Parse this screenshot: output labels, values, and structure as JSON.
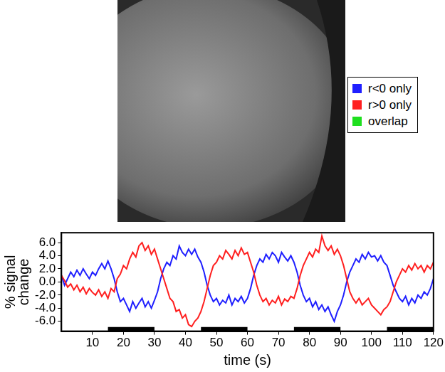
{
  "chart_data": {
    "type": "line",
    "x_label": "time (s)",
    "y_label": "% signal change",
    "x": [
      0,
      1,
      2,
      3,
      4,
      5,
      6,
      7,
      8,
      9,
      10,
      11,
      12,
      13,
      14,
      15,
      16,
      17,
      18,
      19,
      20,
      21,
      22,
      23,
      24,
      25,
      26,
      27,
      28,
      29,
      30,
      31,
      32,
      33,
      34,
      35,
      36,
      37,
      38,
      39,
      40,
      41,
      42,
      43,
      44,
      45,
      46,
      47,
      48,
      49,
      50,
      51,
      52,
      53,
      54,
      55,
      56,
      57,
      58,
      59,
      60,
      61,
      62,
      63,
      64,
      65,
      66,
      67,
      68,
      69,
      70,
      71,
      72,
      73,
      74,
      75,
      76,
      77,
      78,
      79,
      80,
      81,
      82,
      83,
      84,
      85,
      86,
      87,
      88,
      89,
      90,
      91,
      92,
      93,
      94,
      95,
      96,
      97,
      98,
      99,
      100,
      101,
      102,
      103,
      104,
      105,
      106,
      107,
      108,
      109,
      110,
      111,
      112,
      113,
      114,
      115,
      116,
      117,
      118,
      119,
      120
    ],
    "series": [
      {
        "color": "#ff1f1f",
        "values": [
          1.0,
          0.2,
          -0.8,
          -0.3,
          -1.2,
          -0.5,
          -1.5,
          -0.8,
          -1.8,
          -1.0,
          -1.6,
          -2.0,
          -1.2,
          -2.2,
          -1.5,
          -2.5,
          -1.0,
          -1.5,
          0.5,
          1.2,
          2.5,
          2.0,
          3.5,
          4.5,
          3.8,
          5.5,
          6.0,
          4.8,
          5.5,
          4.2,
          5.0,
          3.5,
          2.0,
          0.5,
          -1.0,
          -2.5,
          -3.0,
          -4.5,
          -4.2,
          -5.5,
          -5.0,
          -6.5,
          -6.8,
          -6.0,
          -5.5,
          -4.5,
          -3.0,
          -1.0,
          1.0,
          2.5,
          3.0,
          4.0,
          3.5,
          4.8,
          4.2,
          3.5,
          4.8,
          4.0,
          5.2,
          4.2,
          4.5,
          3.0,
          1.5,
          -0.5,
          -2.0,
          -3.0,
          -2.5,
          -3.5,
          -2.8,
          -3.2,
          -2.2,
          -3.5,
          -2.6,
          -3.0,
          -2.2,
          -2.5,
          -1.0,
          1.0,
          2.5,
          3.5,
          4.5,
          3.8,
          5.0,
          4.5,
          7.0,
          5.5,
          4.8,
          5.5,
          4.2,
          5.0,
          4.0,
          2.5,
          0.5,
          -1.5,
          -2.5,
          -3.2,
          -2.5,
          -3.5,
          -3.0,
          -2.5,
          -3.5,
          -4.0,
          -4.5,
          -5.0,
          -4.2,
          -3.8,
          -3.0,
          -1.5,
          0.0,
          1.0,
          2.0,
          1.5,
          2.5,
          1.8,
          2.8,
          2.0,
          2.5,
          1.5,
          2.5,
          2.0,
          3.0
        ]
      },
      {
        "color": "#1f1fff",
        "values": [
          1.0,
          -0.5,
          0.5,
          1.5,
          0.8,
          1.8,
          1.0,
          2.0,
          1.2,
          0.5,
          1.5,
          1.0,
          2.0,
          2.8,
          2.0,
          3.2,
          2.0,
          0.5,
          -1.5,
          -3.0,
          -2.5,
          -3.5,
          -4.5,
          -3.0,
          -4.0,
          -3.2,
          -2.5,
          -3.8,
          -3.0,
          -4.0,
          -2.8,
          -1.5,
          0.5,
          2.0,
          3.0,
          2.5,
          4.0,
          3.5,
          5.5,
          4.5,
          4.0,
          5.0,
          4.2,
          5.0,
          3.8,
          3.0,
          1.5,
          -0.5,
          -2.0,
          -3.0,
          -2.5,
          -3.5,
          -2.8,
          -3.2,
          -2.0,
          -3.5,
          -2.5,
          -3.0,
          -2.2,
          -3.2,
          -2.5,
          -1.0,
          1.0,
          2.5,
          3.5,
          3.0,
          4.2,
          3.5,
          4.5,
          4.0,
          3.0,
          4.5,
          3.8,
          3.2,
          4.0,
          3.0,
          1.5,
          -0.5,
          -2.0,
          -3.0,
          -2.5,
          -3.8,
          -3.0,
          -4.2,
          -3.5,
          -4.5,
          -3.8,
          -5.0,
          -6.0,
          -4.5,
          -3.5,
          -2.0,
          0.0,
          1.5,
          2.5,
          3.5,
          3.0,
          4.2,
          3.5,
          4.5,
          3.8,
          4.0,
          3.2,
          4.0,
          3.0,
          2.5,
          1.0,
          -0.5,
          -1.5,
          -2.5,
          -3.0,
          -2.2,
          -3.5,
          -2.5,
          -3.2,
          -2.0,
          -2.5,
          -1.5,
          -2.0,
          -1.0,
          0.5
        ]
      }
    ],
    "stimulus_blocks": [
      [
        15,
        30
      ],
      [
        45,
        60
      ],
      [
        75,
        90
      ],
      [
        105,
        120
      ]
    ],
    "stimulus_y": -7.2,
    "xlim": [
      0,
      120
    ],
    "xticks": [
      10,
      20,
      30,
      40,
      50,
      60,
      70,
      80,
      90,
      100,
      110,
      120
    ],
    "ylim": [
      -7.5,
      7.5
    ],
    "yticks": [
      {
        "value": -6,
        "label": "-6.0"
      },
      {
        "value": -4,
        "label": "-4.0"
      },
      {
        "value": -2,
        "label": "-2.0"
      },
      {
        "value": 0,
        "label": "0.0"
      },
      {
        "value": 2,
        "label": "2.0"
      },
      {
        "value": 4,
        "label": "4.0"
      },
      {
        "value": 6,
        "label": "6.0"
      }
    ],
    "grid": false,
    "overlay_key": [
      {
        "label": "r<0 only",
        "color": "#1f1fff"
      },
      {
        "label": "r>0 only",
        "color": "#ff1f1f"
      },
      {
        "label": "overlap",
        "color": "#1fdf1f"
      }
    ]
  }
}
